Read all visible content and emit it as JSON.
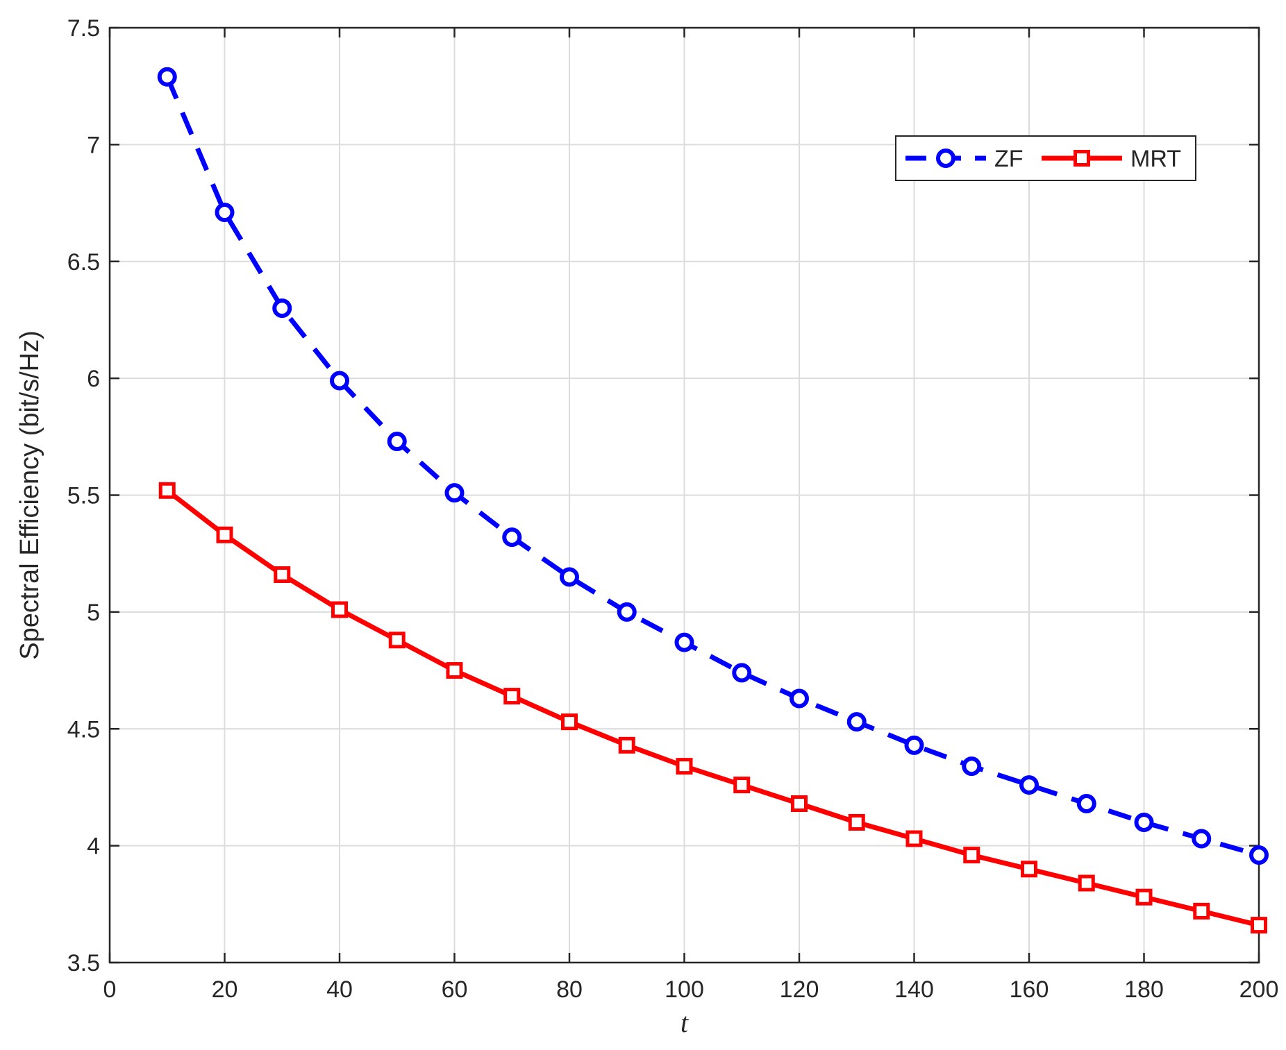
{
  "chart_data": {
    "type": "line",
    "title": "",
    "xlabel": "t",
    "ylabel": "Spectral Efficiency (bit/s/Hz)",
    "xlim": [
      0,
      200
    ],
    "ylim": [
      3.5,
      7.5
    ],
    "xticks": [
      0,
      20,
      40,
      60,
      80,
      100,
      120,
      140,
      160,
      180,
      200
    ],
    "yticks": [
      3.5,
      4,
      4.5,
      5,
      5.5,
      6,
      6.5,
      7,
      7.5
    ],
    "grid": true,
    "legend_position": "top-right",
    "x": [
      10,
      20,
      30,
      40,
      50,
      60,
      70,
      80,
      90,
      100,
      110,
      120,
      130,
      140,
      150,
      160,
      170,
      180,
      190,
      200
    ],
    "series": [
      {
        "name": "ZF",
        "color": "#0000ff",
        "line_style": "dashed",
        "marker": "circle",
        "values": [
          7.29,
          6.71,
          6.3,
          5.99,
          5.73,
          5.51,
          5.32,
          5.15,
          5.0,
          4.87,
          4.74,
          4.63,
          4.53,
          4.43,
          4.34,
          4.26,
          4.18,
          4.1,
          4.03,
          3.96
        ]
      },
      {
        "name": "MRT",
        "color": "#ff0000",
        "line_style": "solid",
        "marker": "square",
        "values": [
          5.52,
          5.33,
          5.16,
          5.01,
          4.88,
          4.75,
          4.64,
          4.53,
          4.43,
          4.34,
          4.26,
          4.18,
          4.1,
          4.03,
          3.96,
          3.9,
          3.84,
          3.78,
          3.72,
          3.66
        ]
      }
    ]
  }
}
